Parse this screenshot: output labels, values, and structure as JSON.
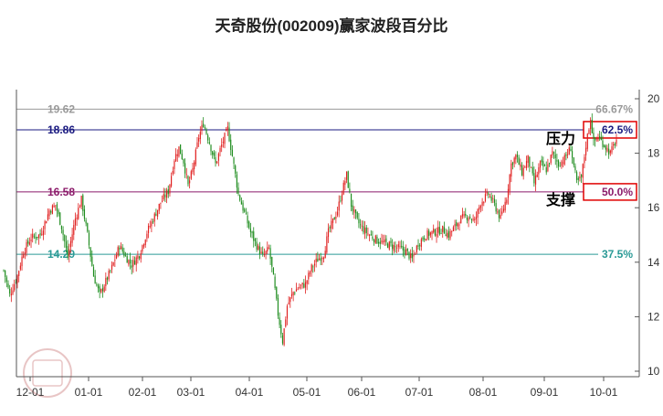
{
  "chart_data": {
    "type": "candlestick",
    "title": "天奇股份(002009)赢家波段百分比",
    "x_ticks": [
      "12-01",
      "01-01",
      "02-01",
      "03-01",
      "04-01",
      "05-01",
      "06-01",
      "07-01",
      "08-01",
      "09-01",
      "10-01"
    ],
    "y_ticks": [
      "10",
      "12",
      "14",
      "16",
      "18",
      "20"
    ],
    "ylim": [
      9.8,
      20.6
    ],
    "levels": [
      {
        "price": "19.62",
        "percent": "66.67%",
        "value": 19.62,
        "color": "#999999",
        "boxed": false
      },
      {
        "price": "18.86",
        "percent": "62.5%",
        "value": 18.86,
        "color": "#1a1a80",
        "boxed": true
      },
      {
        "price": "16.58",
        "percent": "50.0%",
        "value": 16.58,
        "color": "#8b1a6a",
        "boxed": true
      },
      {
        "price": "14.29",
        "percent": "37.5%",
        "value": 14.29,
        "color": "#2a9a96",
        "boxed": false
      }
    ],
    "annotations": {
      "resistance": "压力",
      "support": "支撑"
    },
    "series_path": [
      [
        0,
        13.7
      ],
      [
        4,
        12.8
      ],
      [
        9,
        13.5
      ],
      [
        13,
        14.4
      ],
      [
        18,
        14.9
      ],
      [
        24,
        15.0
      ],
      [
        30,
        15.9
      ],
      [
        34,
        16.1
      ],
      [
        38,
        15.3
      ],
      [
        42,
        14.2
      ],
      [
        47,
        15.6
      ],
      [
        51,
        16.3
      ],
      [
        55,
        15.0
      ],
      [
        59,
        13.5
      ],
      [
        63,
        12.8
      ],
      [
        67,
        13.3
      ],
      [
        71,
        13.8
      ],
      [
        76,
        14.6
      ],
      [
        80,
        14.2
      ],
      [
        84,
        13.9
      ],
      [
        89,
        14.3
      ],
      [
        94,
        15.1
      ],
      [
        99,
        15.7
      ],
      [
        103,
        16.2
      ],
      [
        108,
        16.6
      ],
      [
        112,
        17.8
      ],
      [
        115,
        18.2
      ],
      [
        118,
        17.7
      ],
      [
        121,
        16.8
      ],
      [
        124,
        17.4
      ],
      [
        128,
        18.6
      ],
      [
        131,
        19.1
      ],
      [
        135,
        18.4
      ],
      [
        139,
        17.6
      ],
      [
        143,
        18.3
      ],
      [
        147,
        18.9
      ],
      [
        150,
        17.9
      ],
      [
        154,
        16.5
      ],
      [
        158,
        15.8
      ],
      [
        162,
        15.1
      ],
      [
        166,
        14.6
      ],
      [
        170,
        14.2
      ],
      [
        174,
        14.5
      ],
      [
        177,
        13.4
      ],
      [
        180,
        12.1
      ],
      [
        183,
        11.1
      ],
      [
        186,
        12.4
      ],
      [
        190,
        12.9
      ],
      [
        194,
        13.1
      ],
      [
        198,
        13.2
      ],
      [
        202,
        13.8
      ],
      [
        206,
        14.1
      ],
      [
        210,
        14.3
      ],
      [
        213,
        15.1
      ],
      [
        216,
        15.5
      ],
      [
        219,
        15.9
      ],
      [
        222,
        16.6
      ],
      [
        225,
        17.2
      ],
      [
        228,
        16.1
      ],
      [
        232,
        15.5
      ],
      [
        236,
        15.2
      ],
      [
        240,
        15.0
      ],
      [
        245,
        14.8
      ],
      [
        250,
        14.7
      ],
      [
        255,
        14.6
      ],
      [
        260,
        14.5
      ],
      [
        264,
        14.4
      ],
      [
        268,
        14.1
      ],
      [
        272,
        14.7
      ],
      [
        277,
        15.0
      ],
      [
        282,
        15.1
      ],
      [
        288,
        15.2
      ],
      [
        292,
        15.0
      ],
      [
        296,
        15.3
      ],
      [
        300,
        15.6
      ],
      [
        305,
        15.7
      ],
      [
        309,
        15.5
      ],
      [
        313,
        16.2
      ],
      [
        318,
        16.5
      ],
      [
        322,
        16.1
      ],
      [
        326,
        15.6
      ],
      [
        330,
        16.4
      ],
      [
        333,
        17.6
      ],
      [
        336,
        17.9
      ],
      [
        340,
        17.3
      ],
      [
        344,
        17.8
      ],
      [
        348,
        16.9
      ],
      [
        352,
        17.6
      ],
      [
        356,
        17.4
      ],
      [
        360,
        18.0
      ],
      [
        364,
        17.6
      ],
      [
        368,
        17.8
      ],
      [
        372,
        18.2
      ],
      [
        376,
        16.9
      ],
      [
        379,
        17.1
      ],
      [
        382,
        18.3
      ],
      [
        385,
        19.3
      ],
      [
        387,
        18.4
      ],
      [
        390,
        18.6
      ],
      [
        394,
        18.3
      ],
      [
        398,
        18.0
      ],
      [
        402,
        18.5
      ]
    ]
  }
}
